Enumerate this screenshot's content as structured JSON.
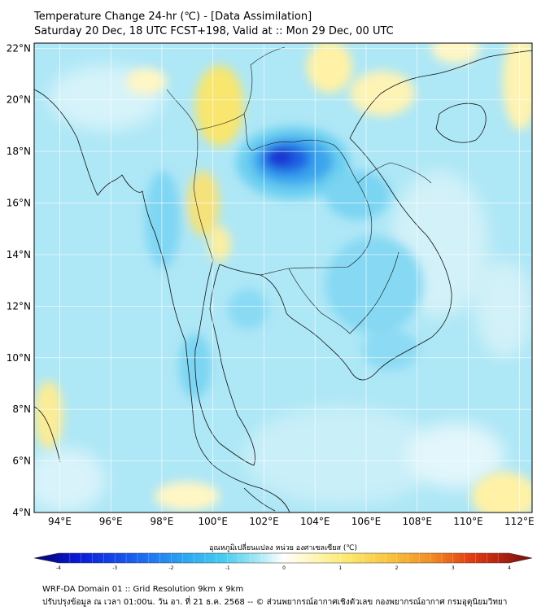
{
  "header": {
    "title": "Temperature Change 24-hr (℃) - [Data Assimilation]",
    "subtitle": "Saturday 20 Dec, 18 UTC FCST+198, Valid at :: Mon 29 Dec, 00 UTC"
  },
  "map": {
    "lon_range": [
      93,
      112.5
    ],
    "lat_range": [
      4,
      22.2
    ],
    "lat_labels": [
      "22°N",
      "20°N",
      "18°N",
      "16°N",
      "14°N",
      "12°N",
      "10°N",
      "8°N",
      "6°N",
      "4°N"
    ],
    "lat_values": [
      22,
      20,
      18,
      16,
      14,
      12,
      10,
      8,
      6,
      4
    ],
    "lon_labels": [
      "94°E",
      "96°E",
      "98°E",
      "100°E",
      "102°E",
      "104°E",
      "106°E",
      "108°E",
      "110°E",
      "112°E"
    ],
    "lon_values": [
      94,
      96,
      98,
      100,
      102,
      104,
      106,
      108,
      110,
      112
    ],
    "colors": {
      "background_field": "#aee7f6",
      "land_outline": "#111111",
      "grid": "#ffffff"
    }
  },
  "colorbar": {
    "label": "อุณหภูมิเปลี่ยนแปลง หน่วย องศาเซลเซียส (℃)",
    "min": -4,
    "max": 4,
    "tick_labels": [
      "-4",
      "-3",
      "-2",
      "-1",
      "0",
      "1",
      "2",
      "3",
      "4"
    ],
    "tick_values": [
      -4,
      -3,
      -2,
      -1,
      0,
      1,
      2,
      3,
      4
    ]
  },
  "footer": {
    "line1": "WRF-DA Domain 01 :: Grid Resolution 9km x 9km",
    "line2": "ปรับปรุงข้อมูล ณ เวลา 01:00น. วัน อา. ที่ 21 ธ.ค. 2568 -- © ส่วนพยากรณ์อากาศเชิงตัวเลข กองพยากรณ์อากาศ กรมอุตุนิยมวิทยา"
  }
}
